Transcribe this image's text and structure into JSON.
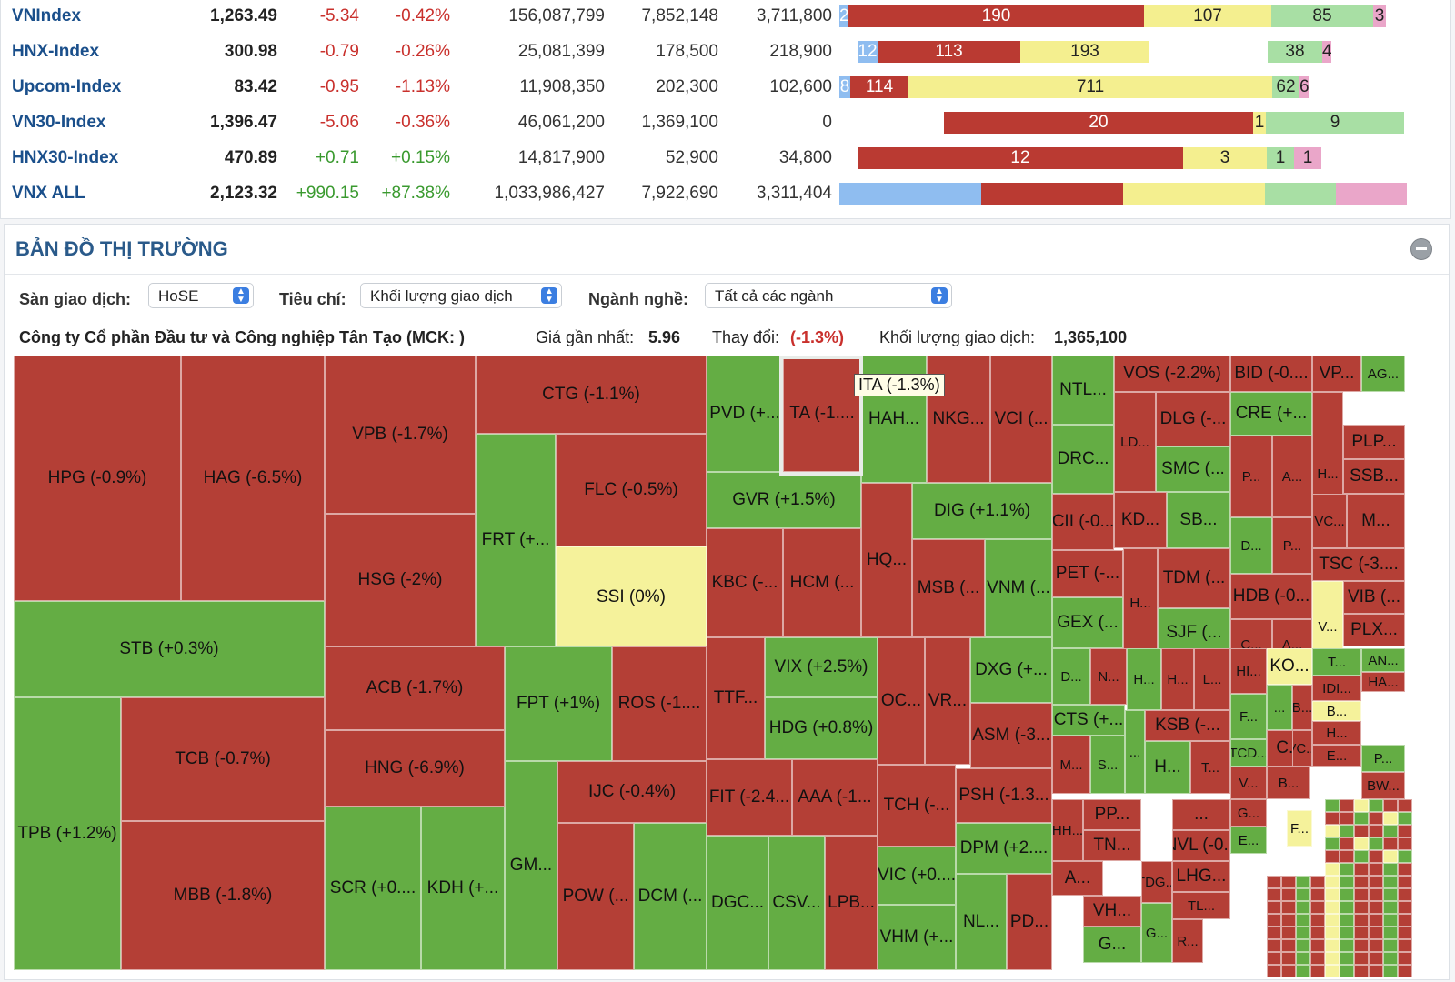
{
  "indices": [
    {
      "name": "VNIndex",
      "value": "1,263.49",
      "change": "-5.34",
      "percent": "-0.42%",
      "volume": "156,087,799",
      "v2": "7,852,148",
      "v3": "3,711,800",
      "trend": "neg",
      "bars": [
        {
          "c": "blue",
          "t": "2"
        },
        {
          "c": "red",
          "t": "190"
        },
        {
          "c": "yellow",
          "t": "107"
        },
        {
          "c": "green",
          "t": "85"
        },
        {
          "c": "pink",
          "t": "3"
        }
      ]
    },
    {
      "name": "HNX-Index",
      "value": "300.98",
      "change": "-0.79",
      "percent": "-0.26%",
      "volume": "25,081,399",
      "v2": "178,500",
      "v3": "218,900",
      "trend": "neg",
      "bars": [
        {
          "c": "blue",
          "t": "12"
        },
        {
          "c": "red",
          "t": "113"
        },
        {
          "c": "yellow",
          "t": "193"
        },
        {
          "c": "green",
          "t": "38"
        },
        {
          "c": "pink",
          "t": "4"
        }
      ]
    },
    {
      "name": "Upcom-Index",
      "value": "83.42",
      "change": "-0.95",
      "percent": "-1.13%",
      "volume": "11,908,350",
      "v2": "202,300",
      "v3": "102,600",
      "trend": "neg",
      "bars": [
        {
          "c": "blue",
          "t": "8"
        },
        {
          "c": "red",
          "t": "114"
        },
        {
          "c": "yellow",
          "t": "711"
        },
        {
          "c": "green",
          "t": "62"
        },
        {
          "c": "pink",
          "t": "6"
        }
      ]
    },
    {
      "name": "VN30-Index",
      "value": "1,396.47",
      "change": "-5.06",
      "percent": "-0.36%",
      "volume": "46,061,200",
      "v2": "1,369,100",
      "v3": "0",
      "trend": "neg",
      "bars": [
        {
          "c": "red",
          "t": "20"
        },
        {
          "c": "yellow",
          "t": "1"
        },
        {
          "c": "green",
          "t": "9"
        }
      ]
    },
    {
      "name": "HNX30-Index",
      "value": "470.89",
      "change": "+0.71",
      "percent": "+0.15%",
      "volume": "14,817,900",
      "v2": "52,900",
      "v3": "34,800",
      "trend": "pos",
      "bars": [
        {
          "c": "red",
          "t": "12"
        },
        {
          "c": "yellow",
          "t": "3"
        },
        {
          "c": "green",
          "t": "1"
        },
        {
          "c": "pink",
          "t": "1"
        }
      ]
    },
    {
      "name": "VNX ALL",
      "value": "2,123.32",
      "change": "+990.15",
      "percent": "+87.38%",
      "volume": "1,033,986,427",
      "v2": "7,922,690",
      "v3": "3,311,404",
      "trend": "pos",
      "bars": [
        {
          "c": "blue",
          "t": ""
        },
        {
          "c": "red",
          "t": ""
        },
        {
          "c": "yellow",
          "t": ""
        },
        {
          "c": "green",
          "t": ""
        },
        {
          "c": "pink",
          "t": ""
        }
      ]
    }
  ],
  "map": {
    "title": "BẢN ĐỒ THỊ TRƯỜNG",
    "exchange_label": "Sàn giao dịch:",
    "exchange_value": "HoSE",
    "criteria_label": "Tiêu chí:",
    "criteria_value": "Khối lượng giao dịch",
    "industry_label": "Ngành nghề:",
    "industry_value": "Tất cả các ngành",
    "company": "Công ty Cổ phần Đầu tư và Công nghiệp Tân Tạo (MCK: )",
    "price_label": "Giá gần nhất:",
    "price_value": "5.96",
    "change_label": "Thay đổi:",
    "change_value": "(-1.3%)",
    "volume_label": "Khối lượng giao dịch:",
    "volume_value": "1,365,100",
    "tooltip": "ITA (-1.3%)"
  },
  "colors": {
    "red": "#b43f36",
    "green": "#64ad44",
    "yellow": "#f5f29b",
    "label_blue": "#1a4f8b"
  },
  "tiles": [
    {
      "l": "HPG (-0.9%)",
      "c": "r"
    },
    {
      "l": "HAG (-6.5%)",
      "c": "r"
    },
    {
      "l": "STB (+0.3%)",
      "c": "g"
    },
    {
      "l": "TPB (+1.2%)",
      "c": "g"
    },
    {
      "l": "TCB (-0.7%)",
      "c": "r"
    },
    {
      "l": "MBB (-1.8%)",
      "c": "r"
    },
    {
      "l": "VPB (-1.7%)",
      "c": "r"
    },
    {
      "l": "HSG (-2%)",
      "c": "r"
    },
    {
      "l": "ACB (-1.7%)",
      "c": "r"
    },
    {
      "l": "HNG (-6.9%)",
      "c": "r"
    },
    {
      "l": "SCR (+0....",
      "c": "g"
    },
    {
      "l": "KDH (+...",
      "c": "g"
    },
    {
      "l": "CTG (-1.1%)",
      "c": "r"
    },
    {
      "l": "FRT (+...",
      "c": "g"
    },
    {
      "l": "FLC (-0.5%)",
      "c": "r"
    },
    {
      "l": "SSI (0%)",
      "c": "y"
    },
    {
      "l": "FPT (+1%)",
      "c": "g"
    },
    {
      "l": "ROS (-1....",
      "c": "r"
    },
    {
      "l": "GM...",
      "c": "g"
    },
    {
      "l": "IJC (-0.4%)",
      "c": "r"
    },
    {
      "l": "POW (...",
      "c": "r"
    },
    {
      "l": "DCM (...",
      "c": "g"
    },
    {
      "l": "PVD (+...",
      "c": "g"
    },
    {
      "l": "TA (-1....",
      "c": "r"
    },
    {
      "l": "HAH...",
      "c": "g"
    },
    {
      "l": "NKG...",
      "c": "r"
    },
    {
      "l": "VCI (...",
      "c": "r"
    },
    {
      "l": "GVR (+1.5%)",
      "c": "g"
    },
    {
      "l": "DIG (+1.1%)",
      "c": "g"
    },
    {
      "l": "KBC (-...",
      "c": "r"
    },
    {
      "l": "HCM (...",
      "c": "r"
    },
    {
      "l": "HQ...",
      "c": "r"
    },
    {
      "l": "MSB (...",
      "c": "r"
    },
    {
      "l": "VNM (...",
      "c": "g"
    },
    {
      "l": "TTF...",
      "c": "r"
    },
    {
      "l": "VIX (+2.5%)",
      "c": "g"
    },
    {
      "l": "HDG (+0.8%)",
      "c": "g"
    },
    {
      "l": "OC...",
      "c": "r"
    },
    {
      "l": "VR...",
      "c": "r"
    },
    {
      "l": "DXG (+...",
      "c": "g"
    },
    {
      "l": "ASM (-3...",
      "c": "r"
    },
    {
      "l": "FIT (-2.4...",
      "c": "r"
    },
    {
      "l": "AAA (-1...",
      "c": "r"
    },
    {
      "l": "TCH (-...",
      "c": "r"
    },
    {
      "l": "PSH (-1.3...",
      "c": "r"
    },
    {
      "l": "DPM (+2....",
      "c": "g"
    },
    {
      "l": "VIC (+0....",
      "c": "g"
    },
    {
      "l": "VHM (+...",
      "c": "g"
    },
    {
      "l": "NL...",
      "c": "g"
    },
    {
      "l": "PD...",
      "c": "r"
    },
    {
      "l": "DGC...",
      "c": "g"
    },
    {
      "l": "CSV...",
      "c": "g"
    },
    {
      "l": "LPB...",
      "c": "r"
    },
    {
      "l": "NTL...",
      "c": "g"
    },
    {
      "l": "VOS (-2.2%)",
      "c": "r"
    },
    {
      "l": "BID (-0....",
      "c": "r"
    },
    {
      "l": "VP...",
      "c": "r"
    },
    {
      "l": "AG...",
      "c": "g"
    },
    {
      "l": "DRC...",
      "c": "g"
    },
    {
      "l": "LD...",
      "c": "r"
    },
    {
      "l": "DLG (-...",
      "c": "r"
    },
    {
      "l": "SMC (...",
      "c": "g"
    },
    {
      "l": "CRE (+...",
      "c": "g"
    },
    {
      "l": "P...",
      "c": "r"
    },
    {
      "l": "A...",
      "c": "r"
    },
    {
      "l": "H...",
      "c": "r"
    },
    {
      "l": "PLP...",
      "c": "r"
    },
    {
      "l": "SSB...",
      "c": "r"
    },
    {
      "l": "CII (-0...",
      "c": "r"
    },
    {
      "l": "KD...",
      "c": "r"
    },
    {
      "l": "SB...",
      "c": "g"
    },
    {
      "l": "D...",
      "c": "g"
    },
    {
      "l": "P...",
      "c": "r"
    },
    {
      "l": "VC...",
      "c": "r"
    },
    {
      "l": "M...",
      "c": "r"
    },
    {
      "l": "PET (-...",
      "c": "r"
    },
    {
      "l": "H...",
      "c": "r"
    },
    {
      "l": "TDM (...",
      "c": "r"
    },
    {
      "l": "HDB (-0...",
      "c": "r"
    },
    {
      "l": "TSC (-3....",
      "c": "r"
    },
    {
      "l": "GEX (...",
      "c": "g"
    },
    {
      "l": "SJF (...",
      "c": "g"
    },
    {
      "l": "C...",
      "c": "r"
    },
    {
      "l": "A...",
      "c": "r"
    },
    {
      "l": "V...",
      "c": "y"
    },
    {
      "l": "VIB (...",
      "c": "r"
    },
    {
      "l": "PLX...",
      "c": "r"
    },
    {
      "l": "D...",
      "c": "g"
    },
    {
      "l": "N...",
      "c": "r"
    },
    {
      "l": "H...",
      "c": "g"
    },
    {
      "l": "H...",
      "c": "r"
    },
    {
      "l": "L...",
      "c": "r"
    },
    {
      "l": "HI...",
      "c": "r"
    },
    {
      "l": "KO...",
      "c": "y"
    },
    {
      "l": "T...",
      "c": "g"
    },
    {
      "l": "AN...",
      "c": "g"
    },
    {
      "l": "HA...",
      "c": "r"
    },
    {
      "l": "CTS (+...",
      "c": "g"
    },
    {
      "l": "...",
      "c": "g"
    },
    {
      "l": "KSB (-...",
      "c": "r"
    },
    {
      "l": "F...",
      "c": "g"
    },
    {
      "l": "...",
      "c": "g"
    },
    {
      "l": "B...",
      "c": "r"
    },
    {
      "l": "IDI...",
      "c": "r"
    },
    {
      "l": "B...",
      "c": "y"
    },
    {
      "l": "M...",
      "c": "r"
    },
    {
      "l": "S...",
      "c": "g"
    },
    {
      "l": "H...",
      "c": "g"
    },
    {
      "l": "T...",
      "c": "r"
    },
    {
      "l": "TCD...",
      "c": "g"
    },
    {
      "l": "C...",
      "c": "r"
    },
    {
      "l": "H...",
      "c": "r"
    },
    {
      "l": "VC...",
      "c": "r"
    },
    {
      "l": "E...",
      "c": "r"
    },
    {
      "l": "P...",
      "c": "g"
    },
    {
      "l": "V...",
      "c": "r"
    },
    {
      "l": "B...",
      "c": "r"
    },
    {
      "l": "BW...",
      "c": "r"
    },
    {
      "l": "PP...",
      "c": "r"
    },
    {
      "l": "...",
      "c": "r"
    },
    {
      "l": "HH...",
      "c": "r"
    },
    {
      "l": "TN...",
      "c": "r"
    },
    {
      "l": "NVL (-0...",
      "c": "r"
    },
    {
      "l": "A...",
      "c": "r"
    },
    {
      "l": "TDG...",
      "c": "r"
    },
    {
      "l": "LHG...",
      "c": "r"
    },
    {
      "l": "TL...",
      "c": "r"
    },
    {
      "l": "VH...",
      "c": "r"
    },
    {
      "l": "G...",
      "c": "g"
    },
    {
      "l": "G...",
      "c": "g"
    },
    {
      "l": "R...",
      "c": "r"
    },
    {
      "l": "G...",
      "c": "r"
    },
    {
      "l": "E...",
      "c": "g"
    },
    {
      "l": "F...",
      "c": "y"
    }
  ]
}
